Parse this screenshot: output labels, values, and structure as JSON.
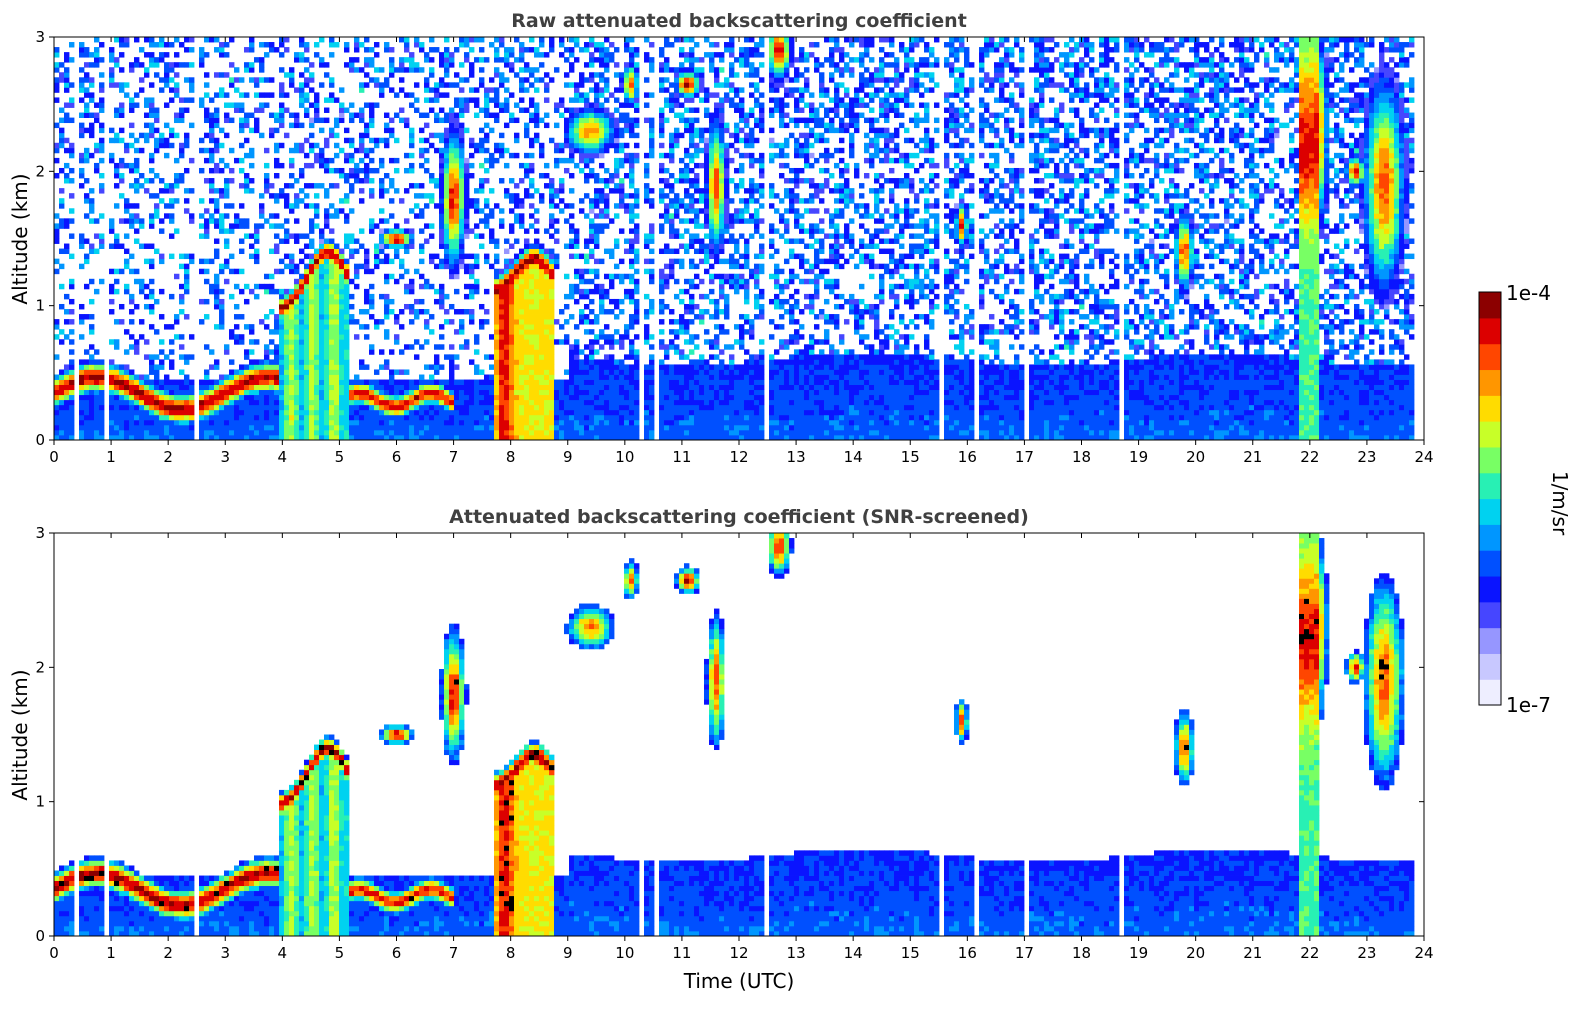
{
  "chart_data": [
    {
      "type": "heatmap",
      "title": "Raw attenuated backscattering coefficient",
      "xlabel": "",
      "ylabel": "Altitude (km)",
      "xlim": [
        0,
        24
      ],
      "ylim": [
        0,
        3
      ],
      "x_ticks": [
        "0",
        "1",
        "2",
        "3",
        "4",
        "5",
        "6",
        "7",
        "8",
        "9",
        "10",
        "11",
        "12",
        "13",
        "14",
        "15",
        "16",
        "17",
        "18",
        "19",
        "20",
        "21",
        "22",
        "23",
        "24"
      ],
      "y_ticks": [
        "0",
        "1",
        "2",
        "3"
      ],
      "screened": false
    },
    {
      "type": "heatmap",
      "title": "Attenuated backscattering coefficient (SNR-screened)",
      "xlabel": "Time (UTC)",
      "ylabel": "Altitude (km)",
      "xlim": [
        0,
        24
      ],
      "ylim": [
        0,
        3
      ],
      "x_ticks": [
        "0",
        "1",
        "2",
        "3",
        "4",
        "5",
        "6",
        "7",
        "8",
        "9",
        "10",
        "11",
        "12",
        "13",
        "14",
        "15",
        "16",
        "17",
        "18",
        "19",
        "20",
        "21",
        "22",
        "23",
        "24"
      ],
      "y_ticks": [
        "0",
        "1",
        "2",
        "3"
      ],
      "screened": true
    }
  ],
  "colorbar": {
    "label": "1/m/sr",
    "max_label": "1e-4",
    "min_label": "1e-7",
    "scale": "log",
    "colors": [
      "#eeeeff",
      "#c8c8ff",
      "#9696ff",
      "#4646ff",
      "#0a14ff",
      "#0050ff",
      "#0096ff",
      "#00d2f0",
      "#28f0b4",
      "#78ff64",
      "#c8ff28",
      "#ffdc00",
      "#ff9600",
      "#ff4600",
      "#dc0000",
      "#8c0000"
    ]
  }
}
